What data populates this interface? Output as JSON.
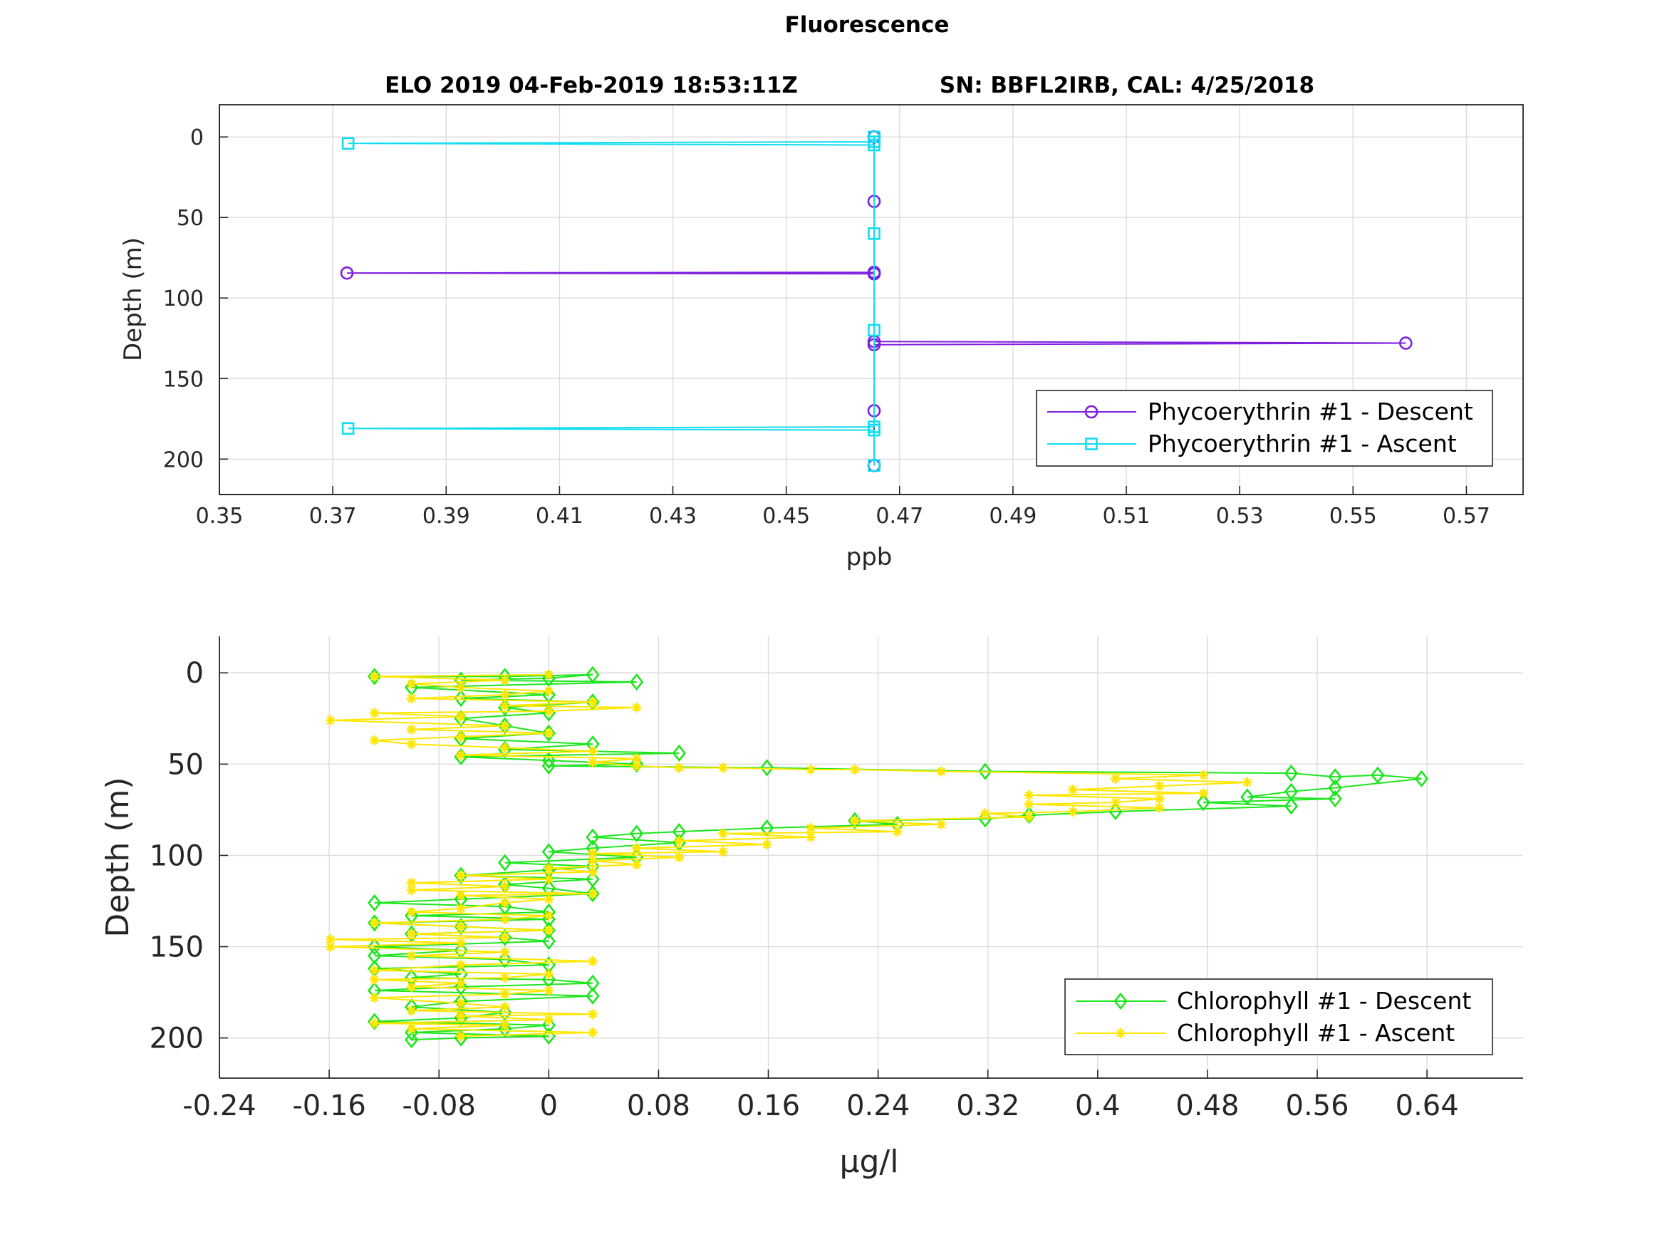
{
  "figure": {
    "title": "Fluorescence",
    "subtitle_left": "ELO 2019 04-Feb-2019 18:53:11Z",
    "subtitle_right": "SN: BBFL2IRB, CAL: 4/25/2018"
  },
  "chart_data": [
    {
      "type": "line",
      "xlabel": "ppb",
      "ylabel": "Depth (m)",
      "xlim": [
        0.35,
        0.58
      ],
      "ylim": [
        -20,
        222
      ],
      "y_reversed": true,
      "xticks": [
        "0.35",
        "0.37",
        "0.39",
        "0.41",
        "0.43",
        "0.45",
        "0.47",
        "0.49",
        "0.51",
        "0.53",
        "0.55",
        "0.57"
      ],
      "yticks": [
        "0",
        "50",
        "100",
        "150",
        "200"
      ],
      "grid": true,
      "legend_position": "bottom-right",
      "series": [
        {
          "name": "Phycoerythrin #1 - Descent",
          "color": "#7f1fe0",
          "marker": "circle",
          "points": [
            [
              0.4655,
              0
            ],
            [
              0.4655,
              40
            ],
            [
              0.4655,
              84
            ],
            [
              0.3725,
              84.5
            ],
            [
              0.4655,
              85
            ],
            [
              0.4655,
              127
            ],
            [
              0.5593,
              128
            ],
            [
              0.4655,
              129
            ],
            [
              0.4655,
              170
            ],
            [
              0.4655,
              204
            ]
          ]
        },
        {
          "name": "Phycoerythrin #1 - Ascent",
          "color": "#12dcf0",
          "marker": "square",
          "points": [
            [
              0.4655,
              204
            ],
            [
              0.4655,
              182
            ],
            [
              0.3727,
              181
            ],
            [
              0.4655,
              180
            ],
            [
              0.4655,
              120
            ],
            [
              0.4655,
              60
            ],
            [
              0.4655,
              5
            ],
            [
              0.3727,
              4
            ],
            [
              0.4655,
              3
            ],
            [
              0.4655,
              0
            ]
          ]
        }
      ]
    },
    {
      "type": "line",
      "xlabel": "µg/l",
      "ylabel": "Depth (m)",
      "xlim": [
        -0.24,
        0.71
      ],
      "ylim": [
        -20,
        222
      ],
      "y_reversed": true,
      "xticks": [
        "-0.24",
        "-0.16",
        "-0.08",
        "0",
        "0.08",
        "0.16",
        "0.24",
        "0.32",
        "0.4",
        "0.48",
        "0.56",
        "0.64"
      ],
      "yticks": [
        "0",
        "50",
        "100",
        "150",
        "200"
      ],
      "grid": true,
      "legend_position": "bottom-right",
      "series": [
        {
          "name": "Chlorophyll #1 - Descent",
          "color": "#1de61d",
          "marker": "diamond",
          "points": [
            [
              -0.127,
              2
            ],
            [
              -0.032,
              2
            ],
            [
              0.032,
              1
            ],
            [
              0.0,
              3
            ],
            [
              -0.064,
              4
            ],
            [
              0.064,
              5
            ],
            [
              -0.1,
              8
            ],
            [
              0.0,
              12
            ],
            [
              -0.064,
              14
            ],
            [
              0.032,
              16
            ],
            [
              -0.032,
              19
            ],
            [
              0.0,
              22
            ],
            [
              -0.064,
              25
            ],
            [
              -0.032,
              29
            ],
            [
              0.0,
              33
            ],
            [
              -0.064,
              36
            ],
            [
              0.032,
              39
            ],
            [
              -0.032,
              42
            ],
            [
              0.095,
              44
            ],
            [
              -0.064,
              46
            ],
            [
              0.0,
              48
            ],
            [
              0.064,
              50
            ],
            [
              0.0,
              51
            ],
            [
              0.159,
              52
            ],
            [
              0.318,
              54
            ],
            [
              0.541,
              55
            ],
            [
              0.573,
              57
            ],
            [
              0.604,
              56
            ],
            [
              0.636,
              58
            ],
            [
              0.573,
              63
            ],
            [
              0.541,
              65
            ],
            [
              0.509,
              68
            ],
            [
              0.573,
              69
            ],
            [
              0.477,
              71
            ],
            [
              0.541,
              73
            ],
            [
              0.413,
              76
            ],
            [
              0.35,
              78
            ],
            [
              0.318,
              80
            ],
            [
              0.223,
              81
            ],
            [
              0.254,
              83
            ],
            [
              0.159,
              85
            ],
            [
              0.095,
              87
            ],
            [
              0.064,
              88
            ],
            [
              0.032,
              90
            ],
            [
              0.095,
              93
            ],
            [
              0.032,
              96
            ],
            [
              0.0,
              98
            ],
            [
              0.064,
              101
            ],
            [
              -0.032,
              104
            ],
            [
              0.032,
              106
            ],
            [
              0.0,
              108
            ],
            [
              -0.064,
              111
            ],
            [
              0.032,
              113
            ],
            [
              -0.032,
              116
            ],
            [
              0.0,
              118
            ],
            [
              0.032,
              121
            ],
            [
              -0.064,
              124
            ],
            [
              -0.127,
              126
            ],
            [
              -0.032,
              128
            ],
            [
              0.0,
              131
            ],
            [
              -0.1,
              133
            ],
            [
              0.0,
              135
            ],
            [
              -0.127,
              137
            ],
            [
              -0.064,
              139
            ],
            [
              0.0,
              141
            ],
            [
              -0.1,
              143
            ],
            [
              -0.032,
              145
            ],
            [
              0.0,
              147
            ],
            [
              -0.127,
              150
            ],
            [
              -0.064,
              152
            ],
            [
              -0.127,
              155
            ],
            [
              -0.032,
              157
            ],
            [
              0.0,
              160
            ],
            [
              -0.127,
              162
            ],
            [
              -0.064,
              165
            ],
            [
              -0.1,
              167
            ],
            [
              0.0,
              168
            ],
            [
              0.032,
              170
            ],
            [
              -0.064,
              172
            ],
            [
              -0.127,
              174
            ],
            [
              0.032,
              177
            ],
            [
              -0.064,
              180
            ],
            [
              -0.1,
              183
            ],
            [
              -0.032,
              186
            ],
            [
              -0.064,
              189
            ],
            [
              -0.127,
              191
            ],
            [
              0.0,
              193
            ],
            [
              -0.032,
              195
            ],
            [
              -0.1,
              197
            ],
            [
              0.0,
              199
            ],
            [
              -0.064,
              200
            ],
            [
              -0.1,
              201
            ]
          ]
        },
        {
          "name": "Chlorophyll #1 - Ascent",
          "color": "#ffe600",
          "marker": "asterisk",
          "points": [
            [
              -0.064,
              199
            ],
            [
              0.032,
              197
            ],
            [
              -0.1,
              195
            ],
            [
              -0.032,
              193
            ],
            [
              -0.127,
              192
            ],
            [
              0.0,
              190
            ],
            [
              -0.064,
              188
            ],
            [
              0.032,
              187
            ],
            [
              -0.1,
              185
            ],
            [
              -0.032,
              183
            ],
            [
              -0.064,
              181
            ],
            [
              -0.127,
              178
            ],
            [
              -0.032,
              176
            ],
            [
              0.0,
              174
            ],
            [
              -0.1,
              172
            ],
            [
              -0.064,
              170
            ],
            [
              -0.127,
              168
            ],
            [
              -0.032,
              167
            ],
            [
              0.0,
              165
            ],
            [
              -0.127,
              163
            ],
            [
              -0.064,
              160
            ],
            [
              0.032,
              158
            ],
            [
              -0.1,
              155
            ],
            [
              -0.032,
              153
            ],
            [
              -0.159,
              150
            ],
            [
              -0.064,
              148
            ],
            [
              -0.159,
              146
            ],
            [
              -0.032,
              145
            ],
            [
              -0.1,
              143
            ],
            [
              0.0,
              141
            ],
            [
              -0.064,
              139
            ],
            [
              -0.127,
              137
            ],
            [
              -0.032,
              135
            ],
            [
              0.0,
              133
            ],
            [
              -0.1,
              131
            ],
            [
              -0.064,
              129
            ],
            [
              -0.032,
              126
            ],
            [
              0.0,
              124
            ],
            [
              -0.064,
              122
            ],
            [
              0.032,
              121
            ],
            [
              -0.1,
              119
            ],
            [
              -0.032,
              117
            ],
            [
              -0.1,
              115
            ],
            [
              0.0,
              113
            ],
            [
              -0.064,
              111
            ],
            [
              0.032,
              109
            ],
            [
              0.0,
              107
            ],
            [
              0.064,
              105
            ],
            [
              0.032,
              103
            ],
            [
              0.095,
              101
            ],
            [
              0.032,
              99
            ],
            [
              0.127,
              98
            ],
            [
              0.064,
              96
            ],
            [
              0.159,
              94
            ],
            [
              0.095,
              92
            ],
            [
              0.191,
              90
            ],
            [
              0.127,
              88
            ],
            [
              0.254,
              87
            ],
            [
              0.191,
              85
            ],
            [
              0.286,
              83
            ],
            [
              0.223,
              81
            ],
            [
              0.35,
              79
            ],
            [
              0.318,
              77
            ],
            [
              0.382,
              76
            ],
            [
              0.445,
              74
            ],
            [
              0.35,
              72
            ],
            [
              0.413,
              71
            ],
            [
              0.445,
              69
            ],
            [
              0.35,
              67
            ],
            [
              0.477,
              66
            ],
            [
              0.382,
              64
            ],
            [
              0.445,
              62
            ],
            [
              0.509,
              60
            ],
            [
              0.413,
              58
            ],
            [
              0.477,
              56
            ],
            [
              0.286,
              54
            ],
            [
              0.223,
              53
            ],
            [
              0.191,
              53
            ],
            [
              0.127,
              52
            ],
            [
              0.095,
              52
            ],
            [
              0.064,
              51
            ],
            [
              0.032,
              49
            ],
            [
              0.064,
              47
            ],
            [
              -0.064,
              45
            ],
            [
              0.032,
              43
            ],
            [
              -0.032,
              41
            ],
            [
              -0.1,
              39
            ],
            [
              -0.127,
              37
            ],
            [
              -0.064,
              35
            ],
            [
              0.0,
              33
            ],
            [
              -0.1,
              31
            ],
            [
              -0.032,
              29
            ],
            [
              -0.159,
              26
            ],
            [
              -0.064,
              24
            ],
            [
              -0.127,
              22
            ],
            [
              0.0,
              21
            ],
            [
              0.064,
              19
            ],
            [
              -0.032,
              18
            ],
            [
              0.032,
              16
            ],
            [
              -0.1,
              14
            ],
            [
              -0.032,
              12
            ],
            [
              0.0,
              10
            ],
            [
              -0.064,
              8
            ],
            [
              -0.1,
              6
            ],
            [
              -0.032,
              4
            ],
            [
              -0.127,
              2
            ],
            [
              0.0,
              1
            ]
          ]
        }
      ]
    }
  ]
}
